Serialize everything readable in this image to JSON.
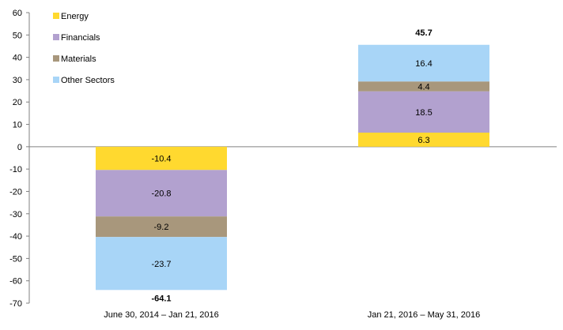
{
  "chart_data": {
    "type": "bar",
    "stacked": true,
    "categories": [
      "June 30, 2014 – Jan 21, 2016",
      "Jan 21, 2016 – May 31, 2016"
    ],
    "series": [
      {
        "name": "Energy",
        "color": "#FFD92F",
        "values": [
          -10.4,
          6.3
        ]
      },
      {
        "name": "Financials",
        "color": "#B2A1CF",
        "values": [
          -20.8,
          18.5
        ]
      },
      {
        "name": "Materials",
        "color": "#A8977C",
        "values": [
          -9.2,
          4.4
        ]
      },
      {
        "name": "Other Sectors",
        "color": "#A8D5F7",
        "values": [
          -23.7,
          16.4
        ]
      }
    ],
    "totals": [
      -64.1,
      45.7
    ],
    "ylim": [
      -70,
      60
    ],
    "yticks": [
      -70,
      -60,
      -50,
      -40,
      -30,
      -20,
      -10,
      0,
      10,
      20,
      30,
      40,
      50,
      60
    ],
    "legend_position": "top-left",
    "grid": false
  }
}
